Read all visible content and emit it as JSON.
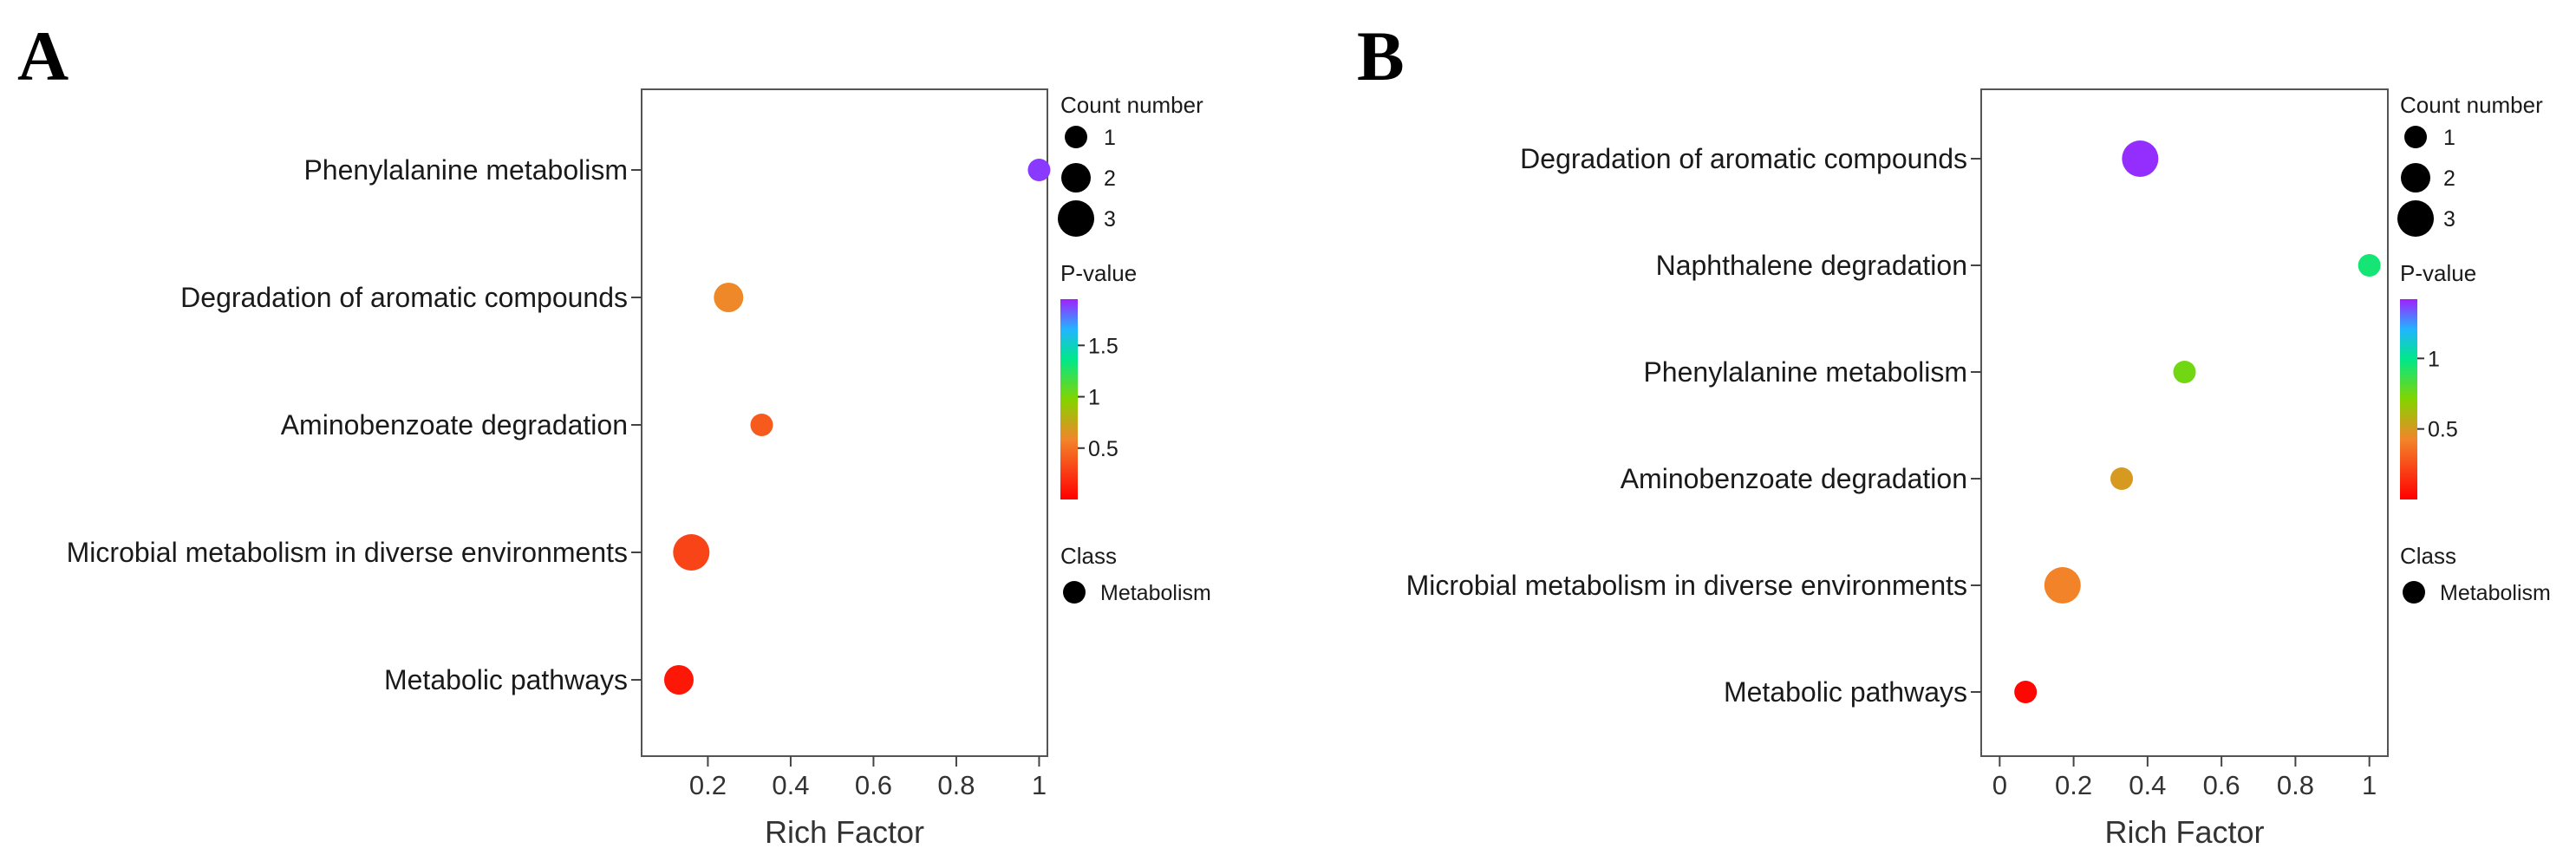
{
  "chart_data": [
    {
      "panel": "A",
      "type": "scatter",
      "xlabel": "Rich Factor",
      "xlim": [
        0.04,
        1.02
      ],
      "xticks": [
        0.2,
        0.4,
        0.6,
        0.8,
        1
      ],
      "xtick_labels": [
        "0.2",
        "0.4",
        "0.6",
        "0.8",
        "1"
      ],
      "categories": [
        "Phenylalanine metabolism",
        "Degradation of aromatic compounds",
        "Aminobenzoate degradation",
        "Microbial metabolism in diverse environments",
        "Metabolic pathways"
      ],
      "points": [
        {
          "pathway": "Phenylalanine metabolism",
          "rich_factor": 1.0,
          "count": 1,
          "p_value": 1.9
        },
        {
          "pathway": "Degradation of aromatic compounds",
          "rich_factor": 0.25,
          "count": 2,
          "p_value": 0.6
        },
        {
          "pathway": "Aminobenzoate degradation",
          "rich_factor": 0.33,
          "count": 1,
          "p_value": 0.4
        },
        {
          "pathway": "Microbial metabolism in diverse environments",
          "rich_factor": 0.16,
          "count": 3,
          "p_value": 0.3
        },
        {
          "pathway": "Metabolic pathways",
          "rich_factor": 0.13,
          "count": 2,
          "p_value": 0.1
        }
      ],
      "legend": {
        "count_title": "Count number",
        "count_levels": [
          1,
          2,
          3
        ],
        "count_labels": [
          "1",
          "2",
          "3"
        ],
        "pvalue_title": "P-value",
        "pvalue_range": [
          0.0,
          1.95
        ],
        "pvalue_ticks": [
          0.5,
          1,
          1.5
        ],
        "pvalue_tick_labels": [
          "0.5",
          "1",
          "1.5"
        ],
        "class_title": "Class",
        "class_label": "Metabolism"
      }
    },
    {
      "panel": "B",
      "type": "scatter",
      "xlabel": "Rich Factor",
      "xlim": [
        -0.05,
        1.05
      ],
      "xticks": [
        0,
        0.2,
        0.4,
        0.6,
        0.8,
        1
      ],
      "xtick_labels": [
        "0",
        "0.2",
        "0.4",
        "0.6",
        "0.8",
        "1"
      ],
      "categories": [
        "Degradation of aromatic compounds",
        "Naphthalene degradation",
        "Phenylalanine metabolism",
        "Aminobenzoate degradation",
        "Microbial metabolism in diverse environments",
        "Metabolic pathways"
      ],
      "points": [
        {
          "pathway": "Degradation of aromatic compounds",
          "rich_factor": 0.38,
          "count": 3,
          "p_value": 1.4
        },
        {
          "pathway": "Naphthalene degradation",
          "rich_factor": 1.0,
          "count": 1,
          "p_value": 0.95
        },
        {
          "pathway": "Phenylalanine metabolism",
          "rich_factor": 0.5,
          "count": 1,
          "p_value": 0.75
        },
        {
          "pathway": "Aminobenzoate degradation",
          "rich_factor": 0.33,
          "count": 1,
          "p_value": 0.5
        },
        {
          "pathway": "Microbial metabolism in diverse environments",
          "rich_factor": 0.17,
          "count": 3,
          "p_value": 0.42
        },
        {
          "pathway": "Metabolic pathways",
          "rich_factor": 0.07,
          "count": 1,
          "p_value": 0.02
        }
      ],
      "legend": {
        "count_title": "Count number",
        "count_levels": [
          1,
          2,
          3
        ],
        "count_labels": [
          "1",
          "2",
          "3"
        ],
        "pvalue_title": "P-value",
        "pvalue_range": [
          0.0,
          1.42
        ],
        "pvalue_ticks": [
          0.5,
          1
        ],
        "pvalue_tick_labels": [
          "0.5",
          "1"
        ],
        "class_title": "Class",
        "class_label": "Metabolism"
      }
    }
  ]
}
